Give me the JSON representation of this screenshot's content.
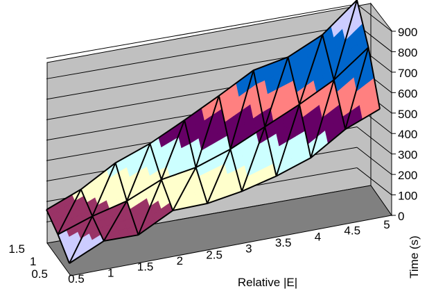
{
  "chart_data": {
    "type": "surface",
    "title": "",
    "xlabel": "Relative |E|",
    "ylabel": "Time (s)",
    "zlabel": "",
    "x_ticks": [
      "0.5",
      "1",
      "1.5",
      "2",
      "2.5",
      "3",
      "3.5",
      "4",
      "4.5",
      "5"
    ],
    "y_ticks": [
      "0",
      "100",
      "200",
      "300",
      "400",
      "500",
      "600",
      "700",
      "800",
      "900"
    ],
    "z_ticks": [
      "0.5",
      "1",
      "1.5"
    ],
    "x": [
      0.5,
      1.0,
      1.5,
      2.0,
      2.5,
      3.0,
      3.5,
      4.0,
      4.5,
      5.0
    ],
    "z": [
      0.5,
      1.0,
      1.5
    ],
    "ylim": [
      0,
      900
    ],
    "time_values": [
      [
        20,
        100,
        100,
        190,
        195,
        225,
        270,
        330,
        440,
        510
      ],
      [
        100,
        160,
        205,
        280,
        310,
        370,
        450,
        530,
        620,
        750
      ],
      [
        160,
        230,
        330,
        395,
        480,
        570,
        665,
        700,
        780,
        920
      ]
    ],
    "color_bands": [
      {
        "range": "0-100",
        "color": "#CCCCFF"
      },
      {
        "range": "100-200",
        "color": "#993366"
      },
      {
        "range": "200-300",
        "color": "#FFFFCC"
      },
      {
        "range": "300-400",
        "color": "#CCFFFF"
      },
      {
        "range": "400-500",
        "color": "#660066"
      },
      {
        "range": "500-600",
        "color": "#FF8080"
      },
      {
        "range": "600-700",
        "color": "#0066CC"
      },
      {
        "range": "700-800",
        "color": "#0066CC"
      },
      {
        "range": "800-900",
        "color": "#CCCCFF"
      }
    ],
    "grid": true,
    "wall_color": "#C0C0C0",
    "floor_color": "#808080"
  }
}
